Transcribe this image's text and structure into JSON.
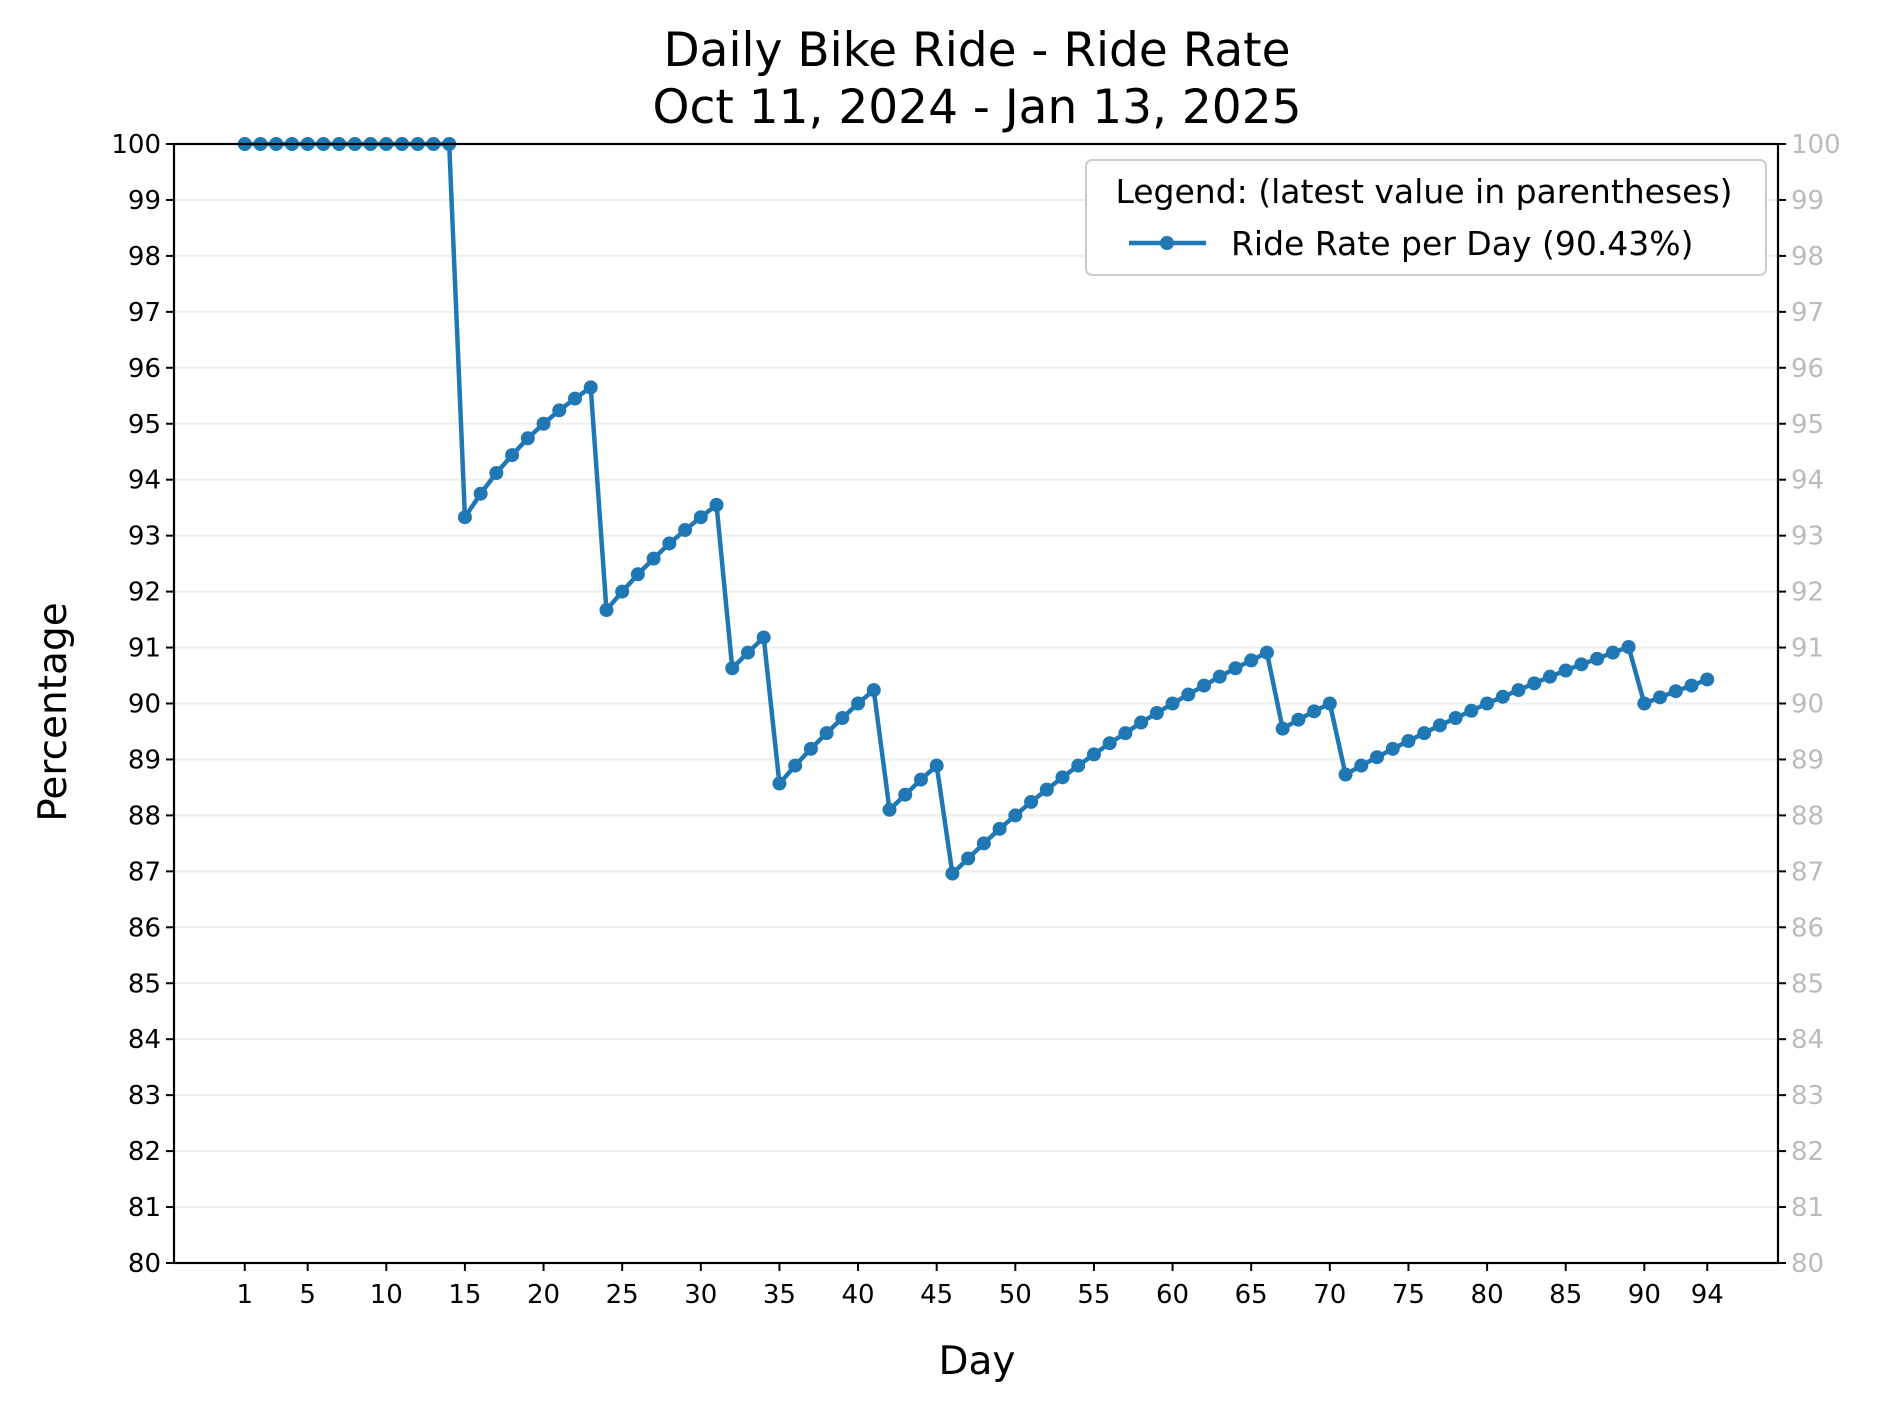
{
  "chart_data": {
    "type": "line",
    "title": "Daily Bike Ride - Ride Rate",
    "subtitle": "Oct 11, 2024 - Jan 13, 2025",
    "xlabel": "Day",
    "ylabel": "Percentage",
    "ylim": [
      80,
      100
    ],
    "xlim": [
      -3.5,
      98.5
    ],
    "x_ticks": [
      1,
      5,
      10,
      15,
      20,
      25,
      30,
      35,
      40,
      45,
      50,
      55,
      60,
      65,
      70,
      75,
      80,
      85,
      90,
      94
    ],
    "y_ticks": [
      80,
      81,
      82,
      83,
      84,
      85,
      86,
      87,
      88,
      89,
      90,
      91,
      92,
      93,
      94,
      95,
      96,
      97,
      98,
      99,
      100
    ],
    "grid": "horizontal",
    "legend": {
      "title": "Legend: (latest value in parentheses)",
      "placement": "top-right"
    },
    "series": [
      {
        "name": "Ride Rate per Day (90.43%)",
        "color": "#1f77b4",
        "x": [
          1,
          2,
          3,
          4,
          5,
          6,
          7,
          8,
          9,
          10,
          11,
          12,
          13,
          14,
          15,
          16,
          17,
          18,
          19,
          20,
          21,
          22,
          23,
          24,
          25,
          26,
          27,
          28,
          29,
          30,
          31,
          32,
          33,
          34,
          35,
          36,
          37,
          38,
          39,
          40,
          41,
          42,
          43,
          44,
          45,
          46,
          47,
          48,
          49,
          50,
          51,
          52,
          53,
          54,
          55,
          56,
          57,
          58,
          59,
          60,
          61,
          62,
          63,
          64,
          65,
          66,
          67,
          68,
          69,
          70,
          71,
          72,
          73,
          74,
          75,
          76,
          77,
          78,
          79,
          80,
          81,
          82,
          83,
          84,
          85,
          86,
          87,
          88,
          89,
          90,
          91,
          92,
          93,
          94
        ],
        "values": [
          100,
          100,
          100,
          100,
          100,
          100,
          100,
          100,
          100,
          100,
          100,
          100,
          100,
          100,
          93.33,
          93.75,
          94.12,
          94.44,
          94.74,
          95.0,
          95.24,
          95.45,
          95.65,
          91.67,
          92.0,
          92.31,
          92.59,
          92.86,
          93.1,
          93.33,
          93.55,
          90.63,
          90.91,
          91.18,
          88.57,
          88.89,
          89.19,
          89.47,
          89.74,
          90.0,
          90.24,
          88.1,
          88.37,
          88.64,
          88.89,
          86.96,
          87.23,
          87.5,
          87.76,
          88.0,
          88.24,
          88.46,
          88.68,
          88.89,
          89.09,
          89.29,
          89.47,
          89.66,
          89.83,
          90.0,
          90.16,
          90.32,
          90.48,
          90.63,
          90.77,
          90.91,
          89.55,
          89.71,
          89.86,
          90.0,
          88.73,
          88.89,
          89.04,
          89.19,
          89.33,
          89.47,
          89.61,
          89.74,
          89.87,
          90.0,
          90.12,
          90.24,
          90.36,
          90.48,
          90.59,
          90.7,
          90.8,
          90.91,
          91.01,
          90.0,
          90.11,
          90.22,
          90.32,
          90.43
        ]
      }
    ]
  }
}
